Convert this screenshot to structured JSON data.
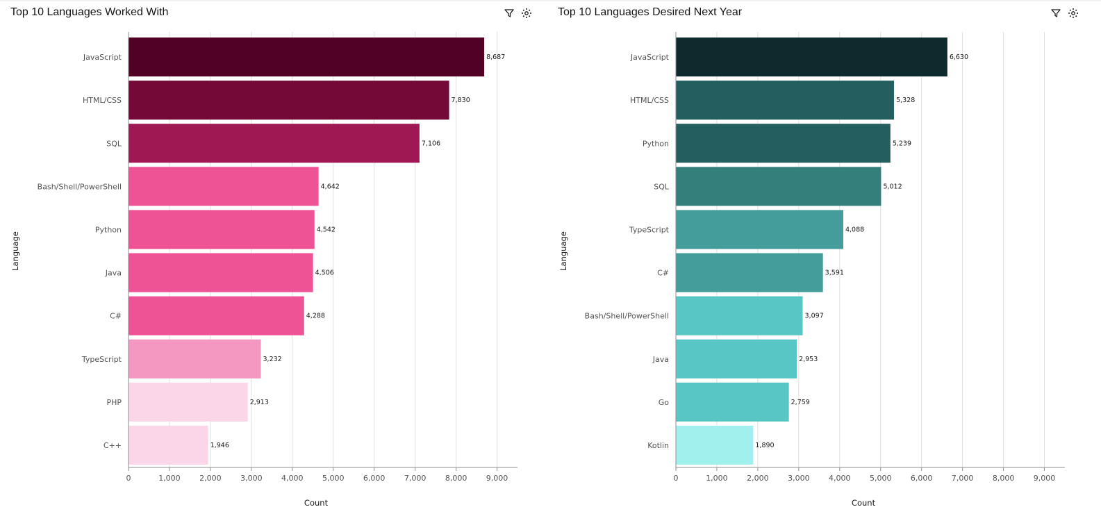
{
  "chart_data": [
    {
      "id": "left",
      "type": "bar",
      "orientation": "horizontal",
      "title": "Top 10 Languages Worked With",
      "xlabel": "Count",
      "ylabel": "Language",
      "xlim": [
        0,
        9500
      ],
      "xticks": [
        0,
        1000,
        2000,
        3000,
        4000,
        5000,
        6000,
        7000,
        8000,
        9000
      ],
      "xtick_labels": [
        "0",
        "1,000",
        "2,000",
        "3,000",
        "4,000",
        "5,000",
        "6,000",
        "7,000",
        "8,000",
        "9,000"
      ],
      "grid": "vertical",
      "categories": [
        "JavaScript",
        "HTML/CSS",
        "SQL",
        "Bash/Shell/PowerShell",
        "Python",
        "Java",
        "C#",
        "TypeScript",
        "PHP",
        "C++"
      ],
      "values": [
        8687,
        7830,
        7106,
        4642,
        4542,
        4506,
        4288,
        3232,
        2913,
        1946
      ],
      "value_labels": [
        "8,687",
        "7,830",
        "7,106",
        "4,642",
        "4,542",
        "4,506",
        "4,288",
        "3,232",
        "2,913",
        "1,946"
      ],
      "bar_colors": [
        "#510224",
        "#740937",
        "#9f1853",
        "#ee5396",
        "#ee5396",
        "#ee5396",
        "#ee5396",
        "#f598c1",
        "#fad6e8",
        "#fad6e8"
      ]
    },
    {
      "id": "right",
      "type": "bar",
      "orientation": "horizontal",
      "title": "Top 10 Languages Desired Next Year",
      "xlabel": "Count",
      "ylabel": "Language",
      "xlim": [
        0,
        9500
      ],
      "xticks": [
        0,
        1000,
        2000,
        3000,
        4000,
        5000,
        6000,
        7000,
        8000,
        9000
      ],
      "xtick_labels": [
        "0",
        "1,000",
        "2,000",
        "3,000",
        "4,000",
        "5,000",
        "6,000",
        "7,000",
        "8,000",
        "9,000"
      ],
      "grid": "vertical",
      "categories": [
        "JavaScript",
        "HTML/CSS",
        "Python",
        "SQL",
        "TypeScript",
        "C#",
        "Bash/Shell/PowerShell",
        "Java",
        "Go",
        "Kotlin"
      ],
      "values": [
        6630,
        5328,
        5239,
        5012,
        4088,
        3591,
        3097,
        2953,
        2759,
        1890
      ],
      "value_labels": [
        "6,630",
        "5,328",
        "5,239",
        "5,012",
        "4,088",
        "3,591",
        "3,097",
        "2,953",
        "2,759",
        "1,890"
      ],
      "bar_colors": [
        "#0e2a2d",
        "#255e5e",
        "#255e5e",
        "#347f7c",
        "#449d9a",
        "#449d9a",
        "#58c6c4",
        "#58c6c4",
        "#58c6c4",
        "#a2f0ee"
      ]
    }
  ],
  "icons": {
    "filter": "filter-icon",
    "settings": "settings-icon"
  },
  "colors": {
    "title_text": "#161616",
    "axis_text": "#525252",
    "grid": "#e0e0e0",
    "axis_line": "#8d8d8d"
  }
}
